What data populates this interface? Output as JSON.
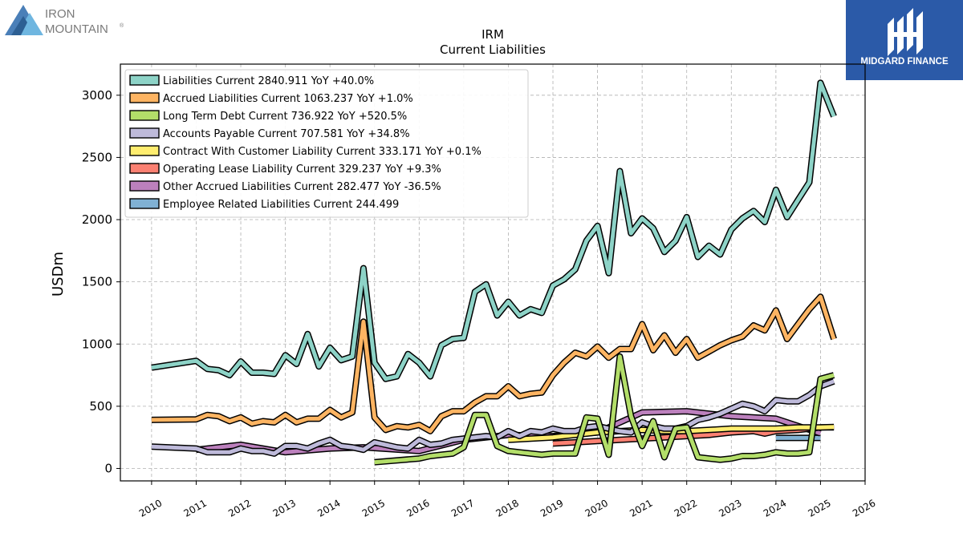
{
  "brand": {
    "left_logo_line1": "IRON",
    "left_logo_line2": "MOUNTAIN",
    "left_logo_mark": "®",
    "right_logo_text": "MIDGARD FINANCE",
    "right_logo_color": "#2b5aa8"
  },
  "chart_data": {
    "type": "line",
    "title": "IRM",
    "subtitle": "Current  Liabilities",
    "ylabel": "USDm",
    "xlim": [
      2009.3,
      2026.0
    ],
    "ylim": [
      -100,
      3250
    ],
    "yticks": [
      0,
      500,
      1000,
      1500,
      2000,
      2500,
      3000
    ],
    "xticks": [
      "2010",
      "2011",
      "2012",
      "2013",
      "2014",
      "2015",
      "2016",
      "2017",
      "2018",
      "2019",
      "2020",
      "2021",
      "2022",
      "2023",
      "2024",
      "2025",
      "2026"
    ],
    "grid": true,
    "legend_position": "top-left",
    "series": [
      {
        "name": "Liabilities Current  2840.911 YoY +40.0%",
        "color": "#8dd3c7",
        "x": [
          2010.0,
          2011.0,
          2011.25,
          2011.5,
          2011.75,
          2012.0,
          2012.25,
          2012.5,
          2012.75,
          2013.0,
          2013.25,
          2013.5,
          2013.75,
          2014.0,
          2014.25,
          2014.5,
          2014.75,
          2015.0,
          2015.25,
          2015.5,
          2015.75,
          2016.0,
          2016.25,
          2016.5,
          2016.75,
          2017.0,
          2017.25,
          2017.5,
          2017.75,
          2018.0,
          2018.25,
          2018.5,
          2018.75,
          2019.0,
          2019.25,
          2019.5,
          2019.75,
          2020.0,
          2020.25,
          2020.5,
          2020.75,
          2021.0,
          2021.25,
          2021.5,
          2021.75,
          2022.0,
          2022.25,
          2022.5,
          2022.75,
          2023.0,
          2023.25,
          2023.5,
          2023.75,
          2024.0,
          2024.25,
          2024.5,
          2024.75,
          2025.0,
          2025.3
        ],
        "values": [
          810,
          865,
          800,
          790,
          750,
          860,
          770,
          770,
          760,
          910,
          840,
          1080,
          820,
          970,
          870,
          900,
          1610,
          850,
          720,
          740,
          920,
          850,
          740,
          990,
          1040,
          1050,
          1420,
          1480,
          1230,
          1340,
          1230,
          1280,
          1250,
          1470,
          1520,
          1600,
          1830,
          1950,
          1570,
          2390,
          1890,
          2010,
          1930,
          1740,
          1830,
          2020,
          1700,
          1790,
          1720,
          1920,
          2010,
          2070,
          1980,
          2240,
          2020,
          2160,
          2300,
          3100,
          2830
        ]
      },
      {
        "name": "Accrued Liabilities Current  1063.237 YoY +1.0%",
        "color": "#fdb462",
        "x": [
          2010.0,
          2011.0,
          2011.25,
          2011.5,
          2011.75,
          2012.0,
          2012.25,
          2012.5,
          2012.75,
          2013.0,
          2013.25,
          2013.5,
          2013.75,
          2014.0,
          2014.25,
          2014.5,
          2014.75,
          2015.0,
          2015.25,
          2015.5,
          2015.75,
          2016.0,
          2016.25,
          2016.5,
          2016.75,
          2017.0,
          2017.25,
          2017.5,
          2017.75,
          2018.0,
          2018.25,
          2018.5,
          2018.75,
          2019.0,
          2019.25,
          2019.5,
          2019.75,
          2020.0,
          2020.25,
          2020.5,
          2020.75,
          2021.0,
          2021.25,
          2021.5,
          2021.75,
          2022.0,
          2022.25,
          2022.5,
          2022.75,
          2023.0,
          2023.25,
          2023.5,
          2023.75,
          2024.0,
          2024.25,
          2024.5,
          2024.75,
          2025.0,
          2025.3
        ],
        "values": [
          390,
          395,
          430,
          420,
          380,
          410,
          360,
          380,
          370,
          430,
          370,
          400,
          400,
          470,
          410,
          450,
          1180,
          410,
          310,
          340,
          330,
          350,
          300,
          420,
          460,
          460,
          530,
          580,
          580,
          660,
          580,
          600,
          610,
          750,
          850,
          930,
          900,
          980,
          890,
          960,
          960,
          1160,
          950,
          1070,
          930,
          1040,
          890,
          940,
          990,
          1030,
          1060,
          1150,
          1110,
          1270,
          1040,
          1160,
          1280,
          1380,
          1040
        ]
      },
      {
        "name": "Long Term Debt Current  736.922 YoY +520.5%",
        "color": "#b3de69",
        "x": [
          2015.0,
          2016.0,
          2016.25,
          2016.5,
          2016.75,
          2017.0,
          2017.25,
          2017.5,
          2017.75,
          2018.0,
          2018.25,
          2018.5,
          2018.75,
          2019.0,
          2019.25,
          2019.5,
          2019.75,
          2020.0,
          2020.25,
          2020.5,
          2020.75,
          2021.0,
          2021.25,
          2021.5,
          2021.75,
          2022.0,
          2022.25,
          2022.5,
          2022.75,
          2023.0,
          2023.25,
          2023.5,
          2023.75,
          2024.0,
          2024.25,
          2024.5,
          2024.75,
          2025.0,
          2025.3
        ],
        "values": [
          50,
          80,
          100,
          110,
          120,
          170,
          430,
          430,
          180,
          140,
          130,
          120,
          110,
          120,
          120,
          120,
          410,
          400,
          110,
          900,
          420,
          180,
          380,
          90,
          320,
          330,
          90,
          80,
          70,
          80,
          100,
          100,
          110,
          130,
          120,
          120,
          130,
          720,
          750
        ]
      },
      {
        "name": "Accounts Payable Current  707.581 YoY +34.8%",
        "color": "#bebada",
        "x": [
          2010.0,
          2011.0,
          2011.25,
          2011.5,
          2011.75,
          2012.0,
          2012.25,
          2012.5,
          2012.75,
          2013.0,
          2013.25,
          2013.5,
          2013.75,
          2014.0,
          2014.25,
          2014.5,
          2014.75,
          2015.0,
          2015.25,
          2015.5,
          2015.75,
          2016.0,
          2016.25,
          2016.5,
          2016.75,
          2017.0,
          2017.25,
          2017.5,
          2017.75,
          2018.0,
          2018.25,
          2018.5,
          2018.75,
          2019.0,
          2019.25,
          2019.5,
          2019.75,
          2020.0,
          2020.25,
          2020.5,
          2020.75,
          2021.0,
          2021.25,
          2021.5,
          2021.75,
          2022.0,
          2022.25,
          2022.5,
          2022.75,
          2023.0,
          2023.25,
          2023.5,
          2023.75,
          2024.0,
          2024.25,
          2024.5,
          2024.75,
          2025.0,
          2025.3
        ],
        "values": [
          175,
          160,
          130,
          130,
          130,
          160,
          140,
          140,
          120,
          180,
          180,
          160,
          200,
          230,
          180,
          170,
          150,
          210,
          190,
          170,
          160,
          230,
          190,
          200,
          230,
          240,
          250,
          260,
          250,
          300,
          260,
          300,
          290,
          320,
          300,
          300,
          330,
          340,
          320,
          300,
          290,
          370,
          340,
          320,
          320,
          340,
          390,
          410,
          440,
          480,
          520,
          500,
          460,
          550,
          540,
          540,
          590,
          660,
          700
        ]
      },
      {
        "name": "Contract With Customer Liability Current  333.171 YoY +0.1%",
        "color": "#ffed6f",
        "x": [
          2018.0,
          2019.0,
          2020.0,
          2021.0,
          2021.5,
          2022.0,
          2022.5,
          2023.0,
          2023.5,
          2024.0,
          2024.5,
          2025.0,
          2025.3
        ],
        "values": [
          230,
          250,
          290,
          310,
          300,
          300,
          310,
          320,
          320,
          320,
          330,
          330,
          333
        ]
      },
      {
        "name": "Operating Lease Liability Current  329.237 YoY +9.3%",
        "color": "#fb8072",
        "x": [
          2019.0,
          2019.5,
          2020.0,
          2020.5,
          2021.0,
          2021.5,
          2022.0,
          2022.5,
          2023.0,
          2023.5,
          2023.75,
          2024.0,
          2024.5,
          2025.0,
          2025.3
        ],
        "values": [
          200,
          210,
          220,
          230,
          240,
          250,
          260,
          270,
          290,
          300,
          280,
          300,
          310,
          330,
          330
        ]
      },
      {
        "name": "Other Accrued Liabilities Current  282.477 YoY -36.5%",
        "color": "#bc80bd",
        "x": [
          2011.0,
          2012.0,
          2013.0,
          2014.0,
          2014.75,
          2016.0,
          2017.0,
          2018.0,
          2019.0,
          2020.0,
          2021.0,
          2022.0,
          2023.0,
          2024.0,
          2025.0
        ],
        "values": [
          150,
          190,
          130,
          160,
          170,
          140,
          230,
          270,
          260,
          290,
          450,
          460,
          420,
          400,
          282
        ]
      },
      {
        "name": "Employee Related Liabilities Current  244.499",
        "color": "#80b1d3",
        "x": [
          2024.0,
          2025.0
        ],
        "values": [
          245,
          245
        ]
      }
    ]
  }
}
